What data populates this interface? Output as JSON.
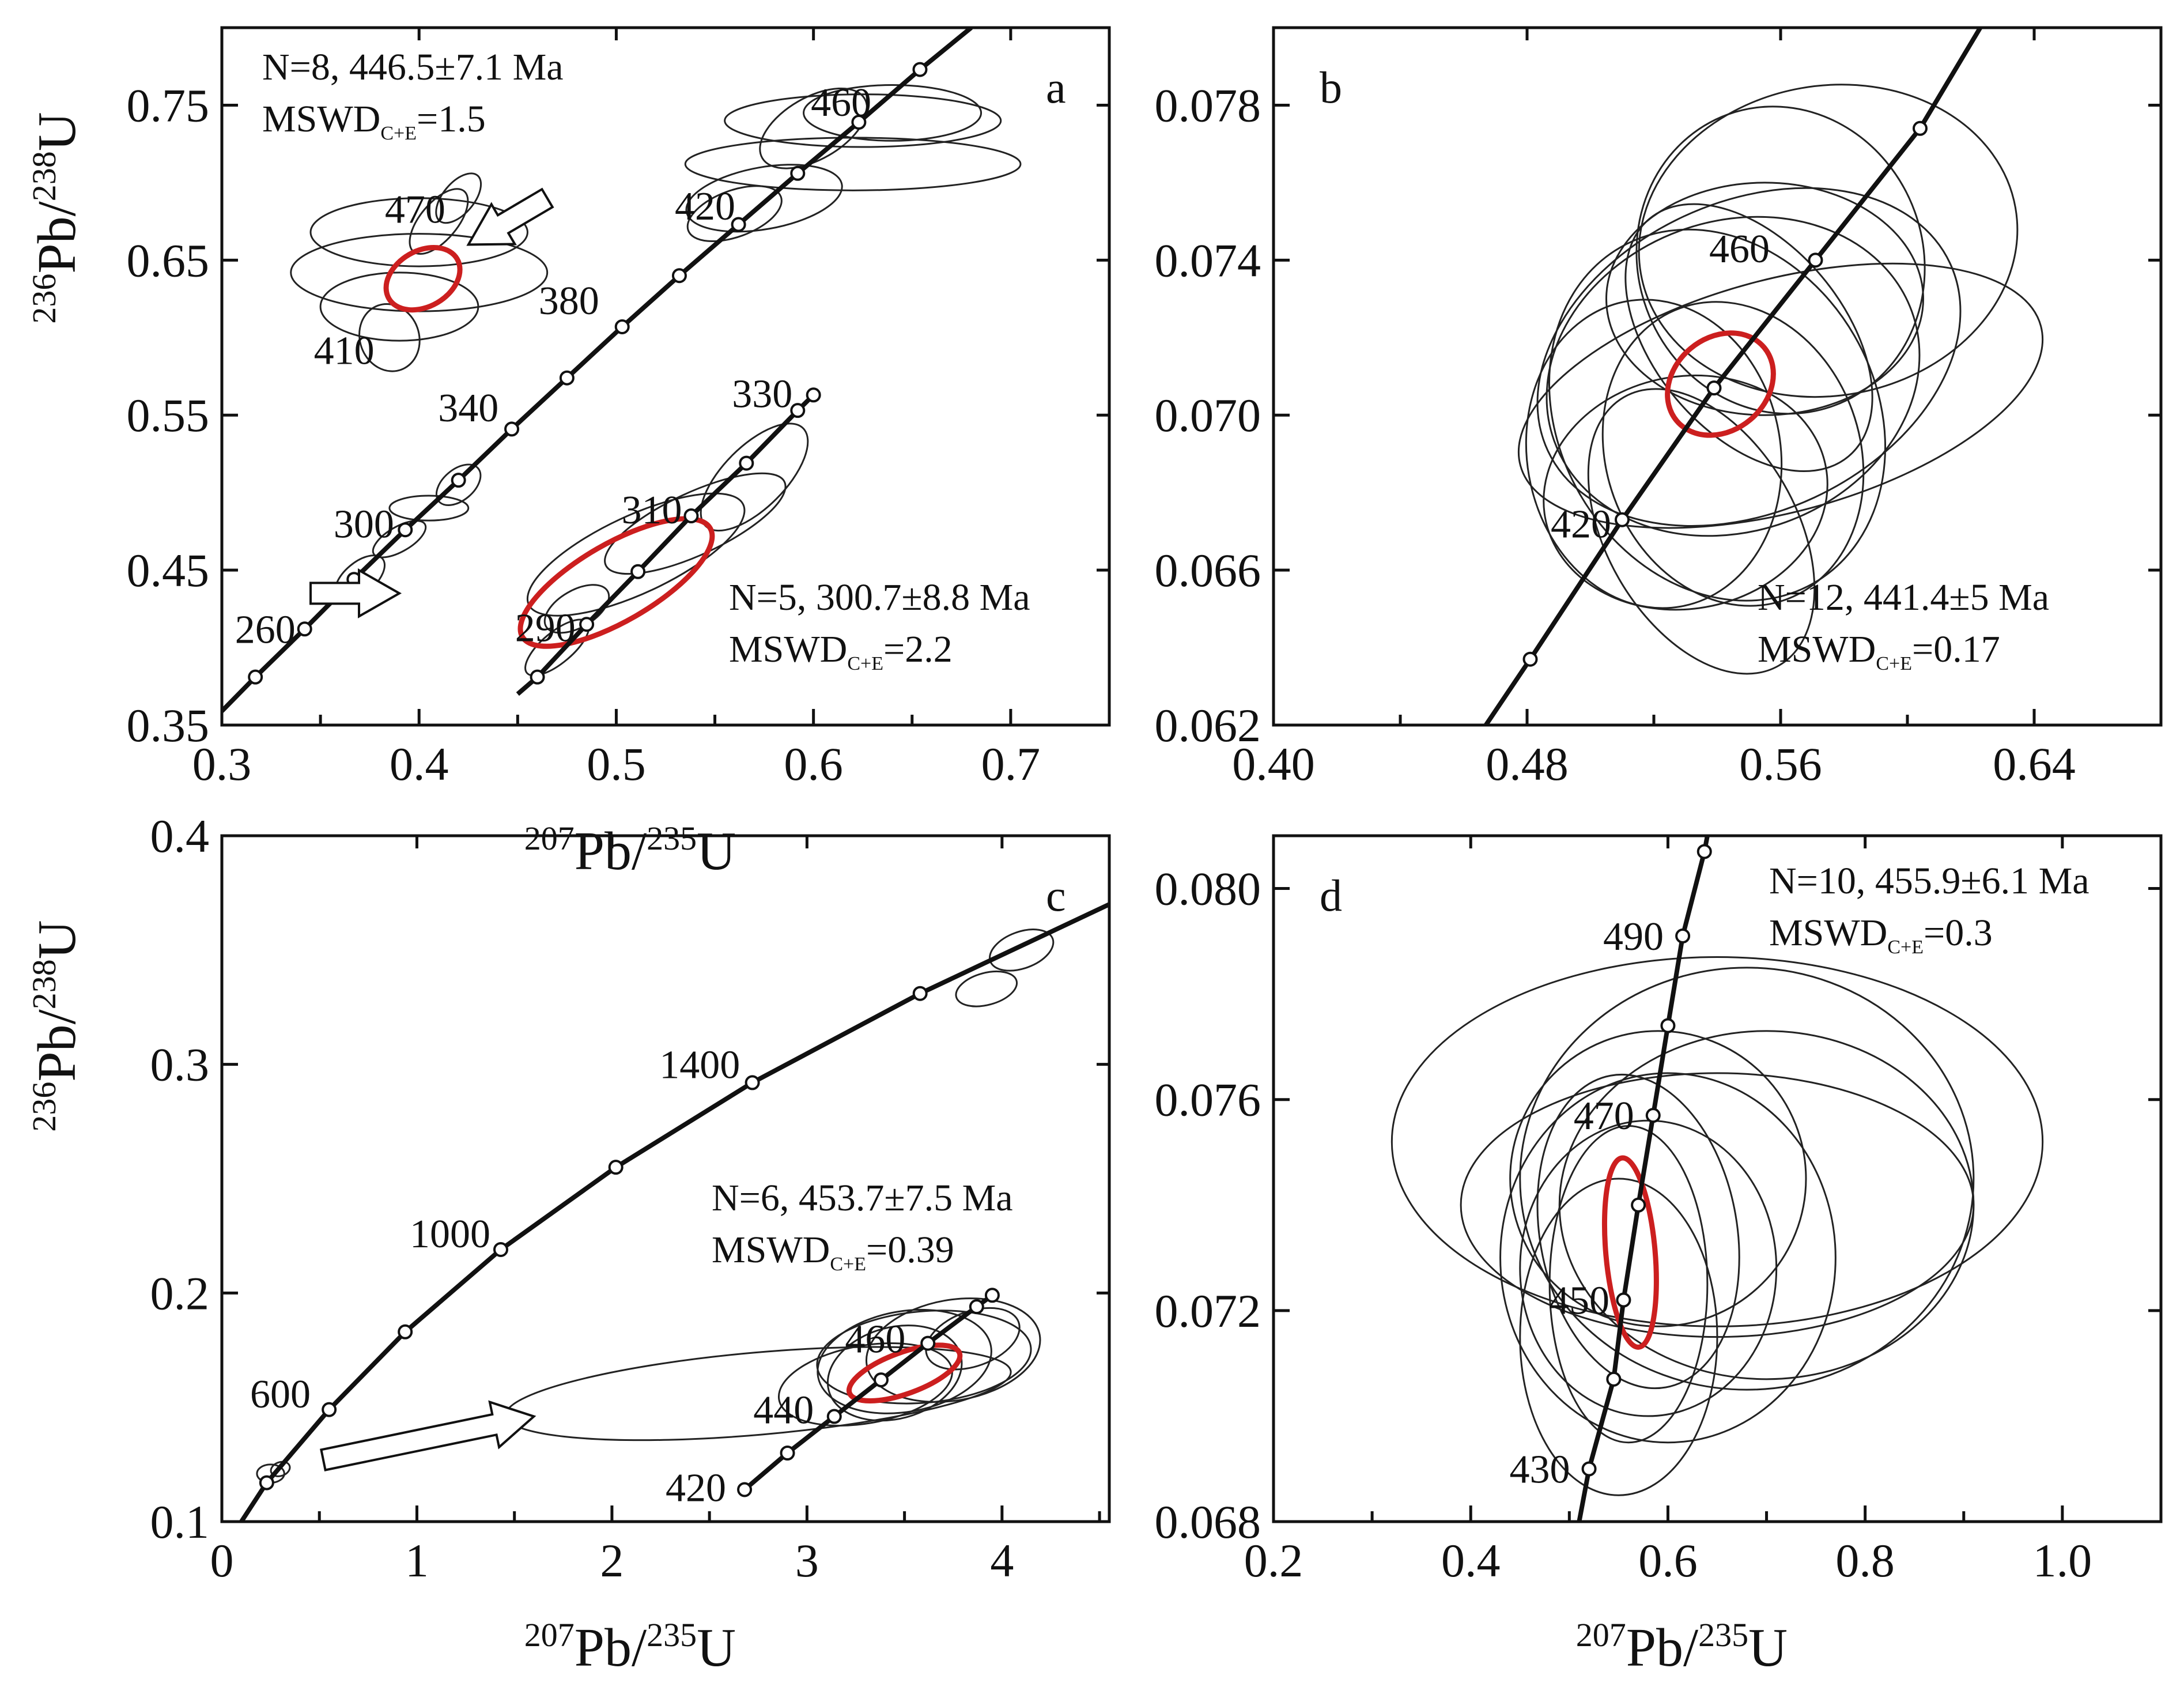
{
  "chart_data": [
    {
      "panel": "a",
      "type": "scatter",
      "chart_subtype": "concordia-diagram",
      "xlabel_mass": "207",
      "xlabel_iso": "Pb/",
      "xlabel_mass2": "235",
      "xlabel_iso2": "U",
      "ylabel_mass": "236",
      "ylabel_iso": "Pb/",
      "ylabel_mass2": "238",
      "ylabel_iso2": "U",
      "xlim": [
        0.3,
        0.75
      ],
      "ylim": [
        0.35,
        0.8
      ],
      "x_ticks": [
        "0.3",
        "0.4",
        "0.5",
        "0.6",
        "0.7"
      ],
      "x_tick_values": [
        0.3,
        0.4,
        0.5,
        0.6,
        0.7
      ],
      "y_ticks": [
        "0.35",
        "0.45",
        "0.55",
        "0.65",
        "0.75"
      ],
      "y_tick_values": [
        0.35,
        0.45,
        0.55,
        0.65,
        0.75
      ],
      "concordia": [
        {
          "x": 0.317,
          "y": 0.381
        },
        {
          "x": 0.342,
          "y": 0.412
        },
        {
          "x": 0.367,
          "y": 0.444
        },
        {
          "x": 0.393,
          "y": 0.476
        },
        {
          "x": 0.42,
          "y": 0.508
        },
        {
          "x": 0.447,
          "y": 0.541
        },
        {
          "x": 0.475,
          "y": 0.574
        },
        {
          "x": 0.503,
          "y": 0.607
        },
        {
          "x": 0.532,
          "y": 0.64
        },
        {
          "x": 0.562,
          "y": 0.673
        },
        {
          "x": 0.592,
          "y": 0.706
        },
        {
          "x": 0.623,
          "y": 0.739
        },
        {
          "x": 0.654,
          "y": 0.773
        },
        {
          "x": 0.68,
          "y": 0.8
        }
      ],
      "concordia2": [
        {
          "x": 0.46,
          "y": 0.381
        },
        {
          "x": 0.485,
          "y": 0.415
        },
        {
          "x": 0.511,
          "y": 0.449
        },
        {
          "x": 0.538,
          "y": 0.485
        },
        {
          "x": 0.566,
          "y": 0.519
        },
        {
          "x": 0.592,
          "y": 0.553
        },
        {
          "x": 0.6,
          "y": 0.563
        }
      ],
      "concordia_start": {
        "x": 0.3,
        "y": 0.359
      },
      "concordia2_start": {
        "x": 0.45,
        "y": 0.37
      },
      "age_labels": [
        {
          "text": "260",
          "x": 0.322,
          "y": 0.412
        },
        {
          "text": "300",
          "x": 0.372,
          "y": 0.48
        },
        {
          "text": "340",
          "x": 0.425,
          "y": 0.555
        },
        {
          "text": "380",
          "x": 0.476,
          "y": 0.624
        },
        {
          "text": "420",
          "x": 0.545,
          "y": 0.685
        },
        {
          "text": "460",
          "x": 0.614,
          "y": 0.752
        },
        {
          "text": "470",
          "x": 0.398,
          "y": 0.683
        },
        {
          "text": "410",
          "x": 0.362,
          "y": 0.592
        },
        {
          "text": "290",
          "x": 0.464,
          "y": 0.413
        },
        {
          "text": "310",
          "x": 0.518,
          "y": 0.489
        },
        {
          "text": "330",
          "x": 0.574,
          "y": 0.564
        }
      ],
      "ellipses": [
        {
          "cx": 0.625,
          "cy": 0.74,
          "rx": 0.07,
          "ry": 0.017,
          "rot": 0
        },
        {
          "cx": 0.64,
          "cy": 0.745,
          "rx": 0.045,
          "ry": 0.018,
          "rot": 0
        },
        {
          "cx": 0.62,
          "cy": 0.712,
          "rx": 0.085,
          "ry": 0.017,
          "rot": 0
        },
        {
          "cx": 0.6,
          "cy": 0.735,
          "rx": 0.03,
          "ry": 0.02,
          "rot": -30
        },
        {
          "cx": 0.575,
          "cy": 0.69,
          "rx": 0.04,
          "ry": 0.02,
          "rot": -10
        },
        {
          "cx": 0.56,
          "cy": 0.68,
          "rx": 0.025,
          "ry": 0.015,
          "rot": -20
        },
        {
          "cx": 0.4,
          "cy": 0.668,
          "rx": 0.055,
          "ry": 0.022,
          "rot": 0
        },
        {
          "cx": 0.4,
          "cy": 0.642,
          "rx": 0.065,
          "ry": 0.025,
          "rot": 0
        },
        {
          "cx": 0.39,
          "cy": 0.62,
          "rx": 0.04,
          "ry": 0.022,
          "rot": 0
        },
        {
          "cx": 0.41,
          "cy": 0.675,
          "rx": 0.02,
          "ry": 0.012,
          "rot": -50
        },
        {
          "cx": 0.42,
          "cy": 0.69,
          "rx": 0.015,
          "ry": 0.01,
          "rot": -50
        },
        {
          "cx": 0.385,
          "cy": 0.6,
          "rx": 0.015,
          "ry": 0.022,
          "rot": -20
        },
        {
          "cx": 0.42,
          "cy": 0.505,
          "rx": 0.013,
          "ry": 0.01,
          "rot": -40
        },
        {
          "cx": 0.405,
          "cy": 0.49,
          "rx": 0.02,
          "ry": 0.008,
          "rot": 0
        },
        {
          "cx": 0.39,
          "cy": 0.47,
          "rx": 0.015,
          "ry": 0.008,
          "rot": -30
        },
        {
          "cx": 0.37,
          "cy": 0.445,
          "rx": 0.015,
          "ry": 0.01,
          "rot": -40
        },
        {
          "cx": 0.51,
          "cy": 0.46,
          "rx": 0.06,
          "ry": 0.025,
          "rot": -25
        },
        {
          "cx": 0.54,
          "cy": 0.48,
          "rx": 0.05,
          "ry": 0.02,
          "rot": -25
        },
        {
          "cx": 0.57,
          "cy": 0.51,
          "rx": 0.035,
          "ry": 0.02,
          "rot": -45
        },
        {
          "cx": 0.47,
          "cy": 0.4,
          "rx": 0.02,
          "ry": 0.01,
          "rot": -40
        },
        {
          "cx": 0.48,
          "cy": 0.425,
          "rx": 0.018,
          "ry": 0.012,
          "rot": -30
        }
      ],
      "mean_ellipses": [
        {
          "cx": 0.402,
          "cy": 0.638,
          "rx": 0.02,
          "ry": 0.018,
          "rot": -30
        },
        {
          "cx": 0.5,
          "cy": 0.442,
          "rx": 0.055,
          "ry": 0.025,
          "rot": -30
        }
      ],
      "arrows": [
        {
          "x1": 0.465,
          "y1": 0.69,
          "x2": 0.425,
          "y2": 0.66
        },
        {
          "x1": 0.345,
          "y1": 0.435,
          "x2": 0.39,
          "y2": 0.435
        }
      ],
      "annotations": [
        {
          "line1": "N=8, 446.5±7.1 Ma",
          "line2": "MSWD",
          "sub": "C+E",
          "tail": "=1.5",
          "pos": "top-left"
        },
        {
          "line1": "N=5, 300.7±8.8 Ma",
          "line2": "MSWD",
          "sub": "C+E",
          "tail": "=2.2",
          "pos": "bottom-right"
        }
      ],
      "panel_letter": "a"
    },
    {
      "panel": "b",
      "type": "scatter",
      "chart_subtype": "concordia-diagram",
      "xlim": [
        0.4,
        0.68
      ],
      "ylim": [
        0.062,
        0.08
      ],
      "x_ticks": [
        "0.40",
        "0.48",
        "0.56",
        "0.64"
      ],
      "x_tick_values": [
        0.4,
        0.48,
        0.56,
        0.64
      ],
      "y_ticks": [
        "0.062",
        "0.066",
        "0.070",
        "0.074",
        "0.078"
      ],
      "y_tick_values": [
        0.062,
        0.066,
        0.07,
        0.074,
        0.078
      ],
      "concordia": [
        {
          "x": 0.467,
          "y": 0.062
        },
        {
          "x": 0.481,
          "y": 0.0637
        },
        {
          "x": 0.51,
          "y": 0.0673
        },
        {
          "x": 0.539,
          "y": 0.0707
        },
        {
          "x": 0.571,
          "y": 0.074
        },
        {
          "x": 0.604,
          "y": 0.0774
        },
        {
          "x": 0.623,
          "y": 0.08
        }
      ],
      "age_labels": [
        {
          "text": "420",
          "x": 0.497,
          "y": 0.0672
        },
        {
          "text": "460",
          "x": 0.547,
          "y": 0.0743
        }
      ],
      "ellipses": [
        {
          "cx": 0.56,
          "cy": 0.0705,
          "rx": 0.085,
          "ry": 0.003,
          "rot": -15
        },
        {
          "cx": 0.55,
          "cy": 0.0715,
          "rx": 0.07,
          "ry": 0.004,
          "rot": -25
        },
        {
          "cx": 0.545,
          "cy": 0.071,
          "rx": 0.06,
          "ry": 0.004,
          "rot": -20
        },
        {
          "cx": 0.54,
          "cy": 0.07,
          "rx": 0.05,
          "ry": 0.005,
          "rot": -30
        },
        {
          "cx": 0.555,
          "cy": 0.073,
          "rx": 0.05,
          "ry": 0.003,
          "rot": 0
        },
        {
          "cx": 0.545,
          "cy": 0.069,
          "rx": 0.04,
          "ry": 0.004,
          "rot": -20
        },
        {
          "cx": 0.53,
          "cy": 0.068,
          "rx": 0.045,
          "ry": 0.003,
          "rot": -10
        },
        {
          "cx": 0.535,
          "cy": 0.067,
          "rx": 0.03,
          "ry": 0.004,
          "rot": -30
        },
        {
          "cx": 0.55,
          "cy": 0.072,
          "rx": 0.03,
          "ry": 0.004,
          "rot": -40
        },
        {
          "cx": 0.56,
          "cy": 0.074,
          "rx": 0.045,
          "ry": 0.004,
          "rot": -20
        },
        {
          "cx": 0.575,
          "cy": 0.0745,
          "rx": 0.06,
          "ry": 0.004,
          "rot": -10
        },
        {
          "cx": 0.52,
          "cy": 0.069,
          "rx": 0.04,
          "ry": 0.004,
          "rot": -10
        }
      ],
      "mean_ellipses": [
        {
          "cx": 0.541,
          "cy": 0.0708,
          "rx": 0.018,
          "ry": 0.0012,
          "rot": -40
        }
      ],
      "annotations": [
        {
          "line1": "N=12, 441.4±5 Ma",
          "line2": "MSWD",
          "sub": "C+E",
          "tail": "=0.17",
          "pos": "bottom-right"
        }
      ],
      "panel_letter": "b"
    },
    {
      "panel": "c",
      "type": "scatter",
      "chart_subtype": "concordia-diagram",
      "xlabel_mass": "207",
      "xlabel_iso": "Pb/",
      "xlabel_mass2": "235",
      "xlabel_iso2": "U",
      "ylabel_mass": "236",
      "ylabel_iso": "Pb/",
      "ylabel_mass2": "238",
      "ylabel_iso2": "U",
      "xlim": [
        0,
        4.55
      ],
      "ylim": [
        0.1,
        0.4
      ],
      "x_ticks": [
        "0",
        "1",
        "2",
        "3",
        "4"
      ],
      "x_tick_values": [
        0,
        1,
        2,
        3,
        4
      ],
      "y_ticks": [
        "0.1",
        "0.2",
        "0.3",
        "0.4"
      ],
      "y_tick_values": [
        0.1,
        0.2,
        0.3,
        0.4
      ],
      "concordia": [
        {
          "x": 0.1,
          "y": 0.1
        },
        {
          "x": 0.23,
          "y": 0.117
        },
        {
          "x": 0.55,
          "y": 0.149
        },
        {
          "x": 0.94,
          "y": 0.183
        },
        {
          "x": 1.43,
          "y": 0.219
        },
        {
          "x": 2.02,
          "y": 0.255
        },
        {
          "x": 2.72,
          "y": 0.292
        },
        {
          "x": 3.58,
          "y": 0.331
        },
        {
          "x": 4.55,
          "y": 0.37
        }
      ],
      "concordia2": [
        {
          "x": 2.68,
          "y": 0.114
        },
        {
          "x": 2.9,
          "y": 0.13
        },
        {
          "x": 3.14,
          "y": 0.146
        },
        {
          "x": 3.38,
          "y": 0.162
        },
        {
          "x": 3.62,
          "y": 0.178
        },
        {
          "x": 3.87,
          "y": 0.194
        },
        {
          "x": 3.95,
          "y": 0.199
        }
      ],
      "age_labels": [
        {
          "text": "600",
          "x": 0.3,
          "y": 0.156
        },
        {
          "text": "1000",
          "x": 1.17,
          "y": 0.226
        },
        {
          "text": "1400",
          "x": 2.45,
          "y": 0.3
        },
        {
          "text": "420",
          "x": 2.43,
          "y": 0.115
        },
        {
          "text": "440",
          "x": 2.88,
          "y": 0.149
        },
        {
          "text": "460",
          "x": 3.35,
          "y": 0.18
        }
      ],
      "ellipses": [
        {
          "cx": 2.75,
          "cy": 0.156,
          "rx": 1.3,
          "ry": 0.018,
          "rot": -5
        },
        {
          "cx": 3.45,
          "cy": 0.165,
          "rx": 0.35,
          "ry": 0.02,
          "rot": -15
        },
        {
          "cx": 3.5,
          "cy": 0.17,
          "rx": 0.45,
          "ry": 0.022,
          "rot": -10
        },
        {
          "cx": 3.6,
          "cy": 0.172,
          "rx": 0.55,
          "ry": 0.02,
          "rot": -5
        },
        {
          "cx": 3.75,
          "cy": 0.175,
          "rx": 0.45,
          "ry": 0.022,
          "rot": -10
        },
        {
          "cx": 3.3,
          "cy": 0.16,
          "rx": 0.45,
          "ry": 0.017,
          "rot": -10
        },
        {
          "cx": 3.85,
          "cy": 0.18,
          "rx": 0.25,
          "ry": 0.012,
          "rot": -20
        },
        {
          "cx": 4.1,
          "cy": 0.35,
          "rx": 0.17,
          "ry": 0.008,
          "rot": -20
        },
        {
          "cx": 3.92,
          "cy": 0.333,
          "rx": 0.16,
          "ry": 0.007,
          "rot": -15
        },
        {
          "cx": 0.25,
          "cy": 0.121,
          "rx": 0.07,
          "ry": 0.004,
          "rot": 0
        },
        {
          "cx": 0.3,
          "cy": 0.123,
          "rx": 0.05,
          "ry": 0.003,
          "rot": -20
        }
      ],
      "mean_ellipses": [
        {
          "cx": 3.5,
          "cy": 0.165,
          "rx": 0.3,
          "ry": 0.009,
          "rot": -20
        }
      ],
      "arrows": [
        {
          "x1": 0.52,
          "y1": 0.127,
          "x2": 1.6,
          "y2": 0.146
        }
      ],
      "annotations": [
        {
          "line1": "N=6, 453.7±7.5 Ma",
          "line2": "MSWD",
          "sub": "C+E",
          "tail": "=0.39",
          "pos": "right"
        }
      ],
      "panel_letter": "c"
    },
    {
      "panel": "d",
      "type": "scatter",
      "chart_subtype": "concordia-diagram",
      "xlabel_mass": "207",
      "xlabel_iso": "Pb/",
      "xlabel_mass2": "235",
      "xlabel_iso2": "U",
      "xlim": [
        0.2,
        1.1
      ],
      "ylim": [
        0.068,
        0.081
      ],
      "x_ticks": [
        "0.2",
        "0.4",
        "0.6",
        "0.8",
        "1.0"
      ],
      "x_tick_values": [
        0.2,
        0.4,
        0.6,
        0.8,
        1.0
      ],
      "y_ticks": [
        "0.068",
        "0.072",
        "0.076",
        "0.080"
      ],
      "y_tick_values": [
        0.068,
        0.072,
        0.076,
        0.08
      ],
      "concordia": [
        {
          "x": 0.51,
          "y": 0.068
        },
        {
          "x": 0.52,
          "y": 0.069
        },
        {
          "x": 0.545,
          "y": 0.0707
        },
        {
          "x": 0.555,
          "y": 0.0722
        },
        {
          "x": 0.57,
          "y": 0.074
        },
        {
          "x": 0.585,
          "y": 0.0757
        },
        {
          "x": 0.6,
          "y": 0.0774
        },
        {
          "x": 0.615,
          "y": 0.0791
        },
        {
          "x": 0.637,
          "y": 0.0807
        },
        {
          "x": 0.64,
          "y": 0.081
        }
      ],
      "age_labels": [
        {
          "text": "430",
          "x": 0.47,
          "y": 0.069
        },
        {
          "text": "450",
          "x": 0.51,
          "y": 0.0722
        },
        {
          "text": "470",
          "x": 0.535,
          "y": 0.0757
        },
        {
          "text": "490",
          "x": 0.565,
          "y": 0.0791
        }
      ],
      "ellipses": [
        {
          "cx": 0.65,
          "cy": 0.0752,
          "rx": 0.33,
          "ry": 0.0035,
          "rot": 0
        },
        {
          "cx": 0.68,
          "cy": 0.0745,
          "rx": 0.23,
          "ry": 0.004,
          "rot": 0
        },
        {
          "cx": 0.7,
          "cy": 0.074,
          "rx": 0.21,
          "ry": 0.0033,
          "rot": 0
        },
        {
          "cx": 0.6,
          "cy": 0.073,
          "rx": 0.17,
          "ry": 0.0035,
          "rot": 0
        },
        {
          "cx": 0.57,
          "cy": 0.0735,
          "rx": 0.1,
          "ry": 0.003,
          "rot": -10
        },
        {
          "cx": 0.56,
          "cy": 0.0725,
          "rx": 0.08,
          "ry": 0.003,
          "rot": 0
        },
        {
          "cx": 0.55,
          "cy": 0.0715,
          "rx": 0.1,
          "ry": 0.003,
          "rot": 0
        },
        {
          "cx": 0.58,
          "cy": 0.0728,
          "rx": 0.13,
          "ry": 0.0028,
          "rot": 0
        },
        {
          "cx": 0.59,
          "cy": 0.0745,
          "rx": 0.15,
          "ry": 0.0028,
          "rot": 0
        },
        {
          "cx": 0.65,
          "cy": 0.074,
          "rx": 0.26,
          "ry": 0.0025,
          "rot": 0
        }
      ],
      "mean_ellipses": [
        {
          "cx": 0.562,
          "cy": 0.0731,
          "rx": 0.025,
          "ry": 0.0018,
          "rot": -5
        }
      ],
      "annotations": [
        {
          "line1": "N=10, 455.9±6.1 Ma",
          "line2": "MSWD",
          "sub": "C+E",
          "tail": "=0.3",
          "pos": "top-right"
        }
      ],
      "panel_letter": "d"
    }
  ]
}
